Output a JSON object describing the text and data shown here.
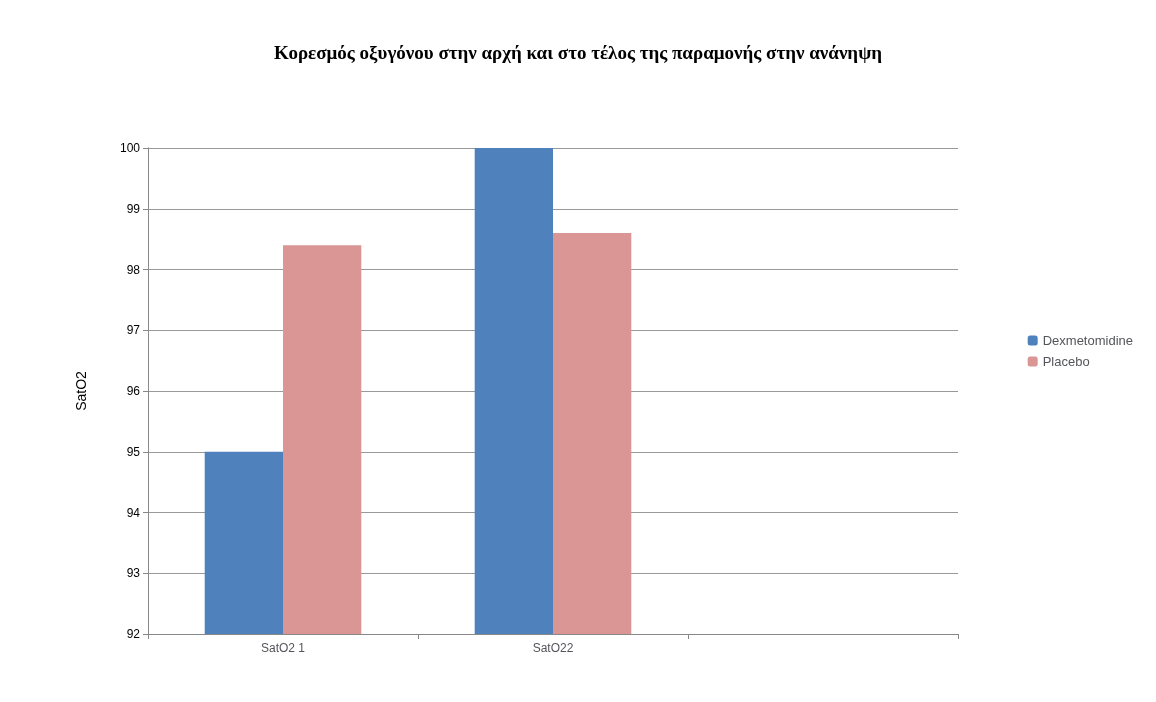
{
  "chart_data": {
    "type": "bar",
    "title": "Κορεσμός οξυγόνου στην αρχή και στο τέλος της παραμονής στην ανάνηψη",
    "ylabel": "SatO2",
    "categories": [
      "SatO2 1",
      "SatO22",
      null
    ],
    "series": [
      {
        "name": "Dexmetomidine",
        "color": "#4f81bd",
        "values": [
          95.0,
          100.0,
          null
        ]
      },
      {
        "name": "Placebo",
        "color": "#d99694",
        "values": [
          98.4,
          98.6,
          null
        ]
      }
    ],
    "ylim": [
      92,
      100
    ],
    "yticks": [
      92,
      93,
      94,
      95,
      96,
      97,
      98,
      99,
      100
    ],
    "grid": "y",
    "legend": "right"
  }
}
